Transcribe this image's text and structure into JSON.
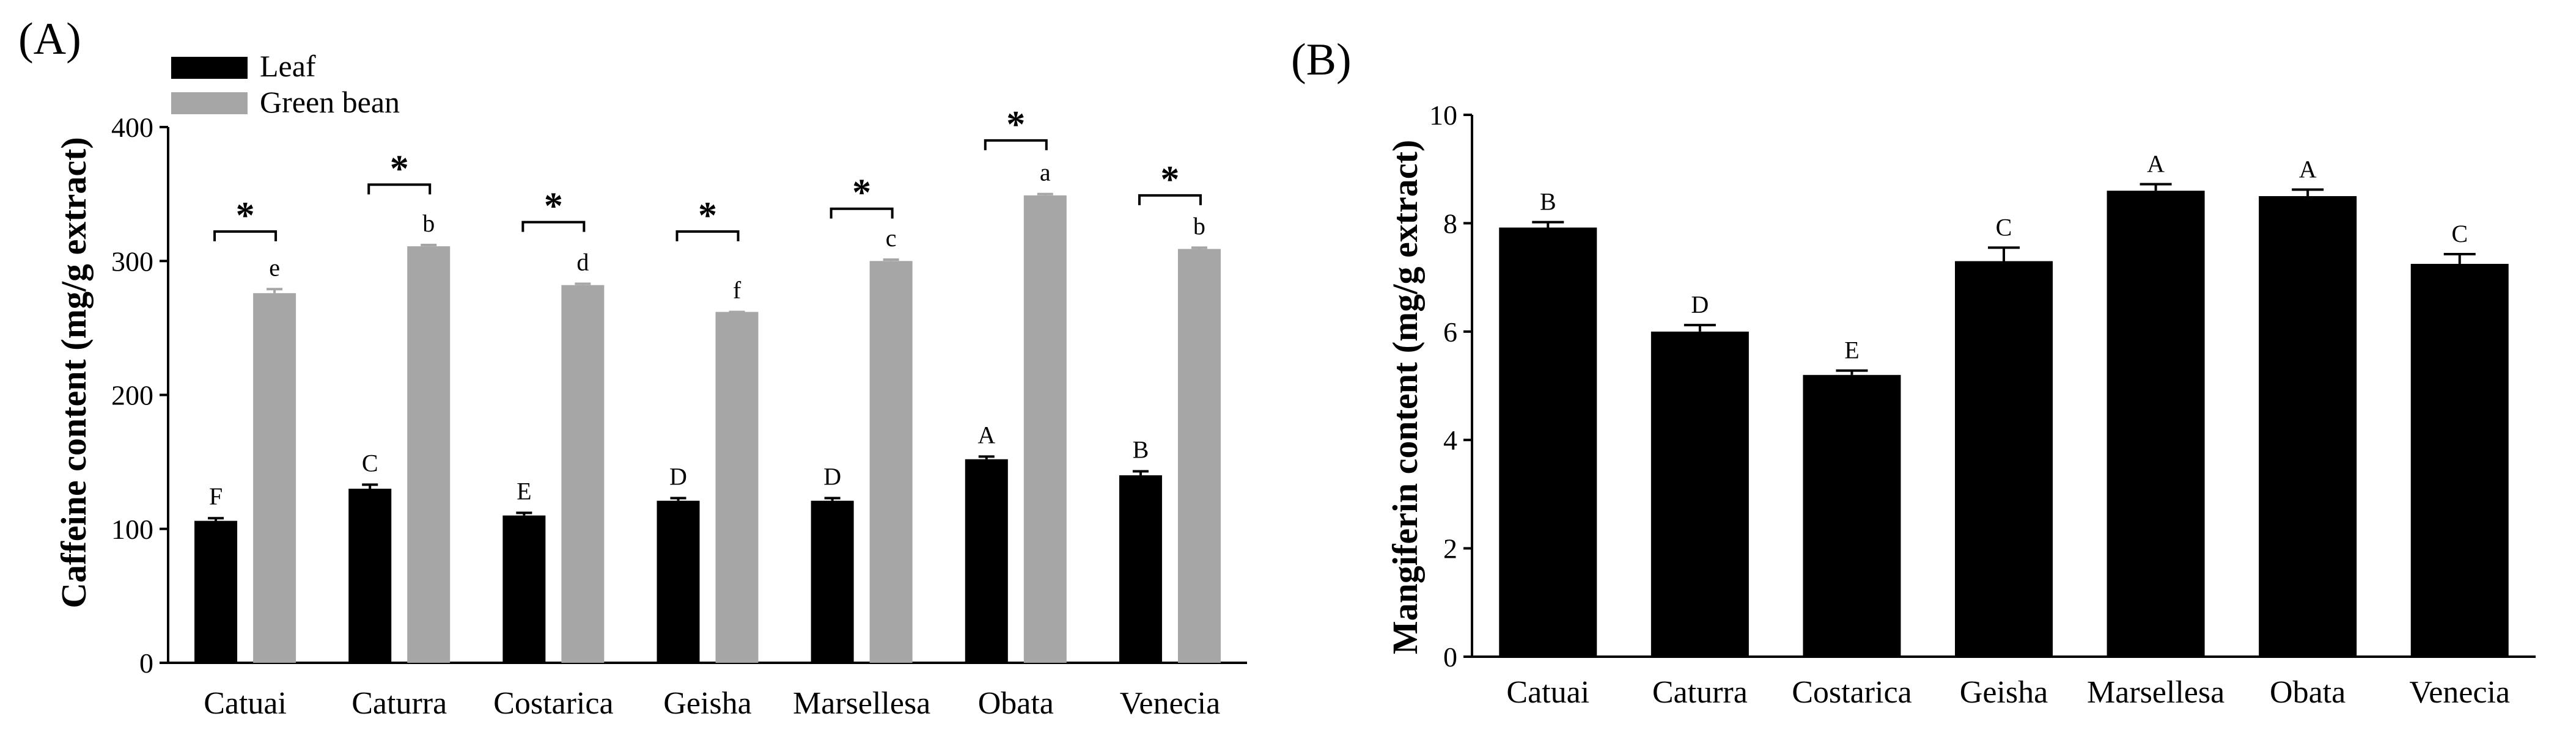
{
  "chart_data": [
    {
      "panel_label": "(A)",
      "type": "bar",
      "categories": [
        "Catuai",
        "Caturra",
        "Costarica",
        "Geisha",
        "Marsellesa",
        "Obata",
        "Venecia"
      ],
      "ylabel": "Caffeine content (mg/g extract)",
      "xlabel": "",
      "ylim": [
        0,
        400
      ],
      "yticks": [
        "0",
        "100",
        "200",
        "300",
        "400"
      ],
      "legend": {
        "placement": "top-left",
        "entries": [
          "Leaf",
          "Green bean"
        ]
      },
      "series": [
        {
          "name": "Leaf",
          "color": "#000000",
          "values": [
            106,
            130,
            110,
            121,
            121,
            152,
            140
          ],
          "errors": [
            2,
            3,
            2,
            2,
            2,
            2,
            3
          ],
          "letters": [
            "F",
            "C",
            "E",
            "D",
            "D",
            "A",
            "B"
          ]
        },
        {
          "name": "Green bean",
          "color": "#a6a6a6",
          "values": [
            276,
            311,
            282,
            262,
            300,
            349,
            309
          ],
          "errors": [
            3,
            1,
            1,
            0,
            1,
            1,
            1
          ],
          "letters": [
            "e",
            "b",
            "d",
            "f",
            "c",
            "a",
            "b"
          ]
        }
      ],
      "significance": {
        "symbol": "*",
        "levels": [
          322,
          357,
          329,
          322,
          339,
          390,
          349
        ]
      }
    },
    {
      "panel_label": "(B)",
      "type": "bar",
      "categories": [
        "Catuai",
        "Caturra",
        "Costarica",
        "Geisha",
        "Marsellesa",
        "Obata",
        "Venecia"
      ],
      "ylabel": "Mangiferin content (mg/g extract)",
      "xlabel": "",
      "ylim": [
        0,
        10
      ],
      "yticks": [
        "0",
        "2",
        "4",
        "6",
        "8",
        "10"
      ],
      "series": [
        {
          "name": "Mangiferin",
          "color": "#000000",
          "values": [
            7.92,
            6.0,
            5.2,
            7.3,
            8.6,
            8.5,
            7.25
          ],
          "errors": [
            0.1,
            0.12,
            0.08,
            0.25,
            0.12,
            0.12,
            0.18
          ],
          "letters": [
            "B",
            "D",
            "E",
            "C",
            "A",
            "A",
            "C"
          ]
        }
      ]
    }
  ]
}
